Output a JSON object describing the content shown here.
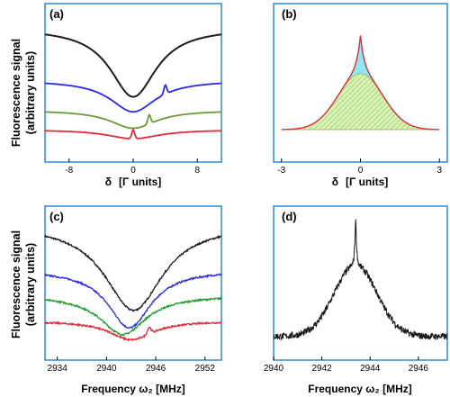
{
  "ylabel_line1": "Fluorescence signal",
  "ylabel_line2": "(arbitrary units)",
  "colors": {
    "frame": "#2f8bd6",
    "black": "#1a1a1a",
    "blue": "#2a2ae6",
    "green": "#6a9a3a",
    "green_c": "#1f9a2a",
    "red": "#e12a3a",
    "fill_cyan": "#8fe8f2",
    "fill_green": "#c8ec9a",
    "hatch": "#9fd070"
  },
  "chart_data": [
    {
      "panel": "(a)",
      "type": "line",
      "xlabel_sym": "δ",
      "xlabel_unit": "[Γ units]",
      "xlim": [
        -11,
        11
      ],
      "ylim": [
        0,
        1
      ],
      "xticks": [
        -8,
        0,
        8
      ],
      "series": [
        {
          "color": "black",
          "center": 0,
          "offset": 0.86,
          "depth": 0.46,
          "width": 3.5,
          "feature": null
        },
        {
          "color": "blue",
          "center": 0,
          "offset": 0.51,
          "depth": 0.21,
          "width": 3.5,
          "feature": {
            "x": 4,
            "height": 0.06
          }
        },
        {
          "color": "green",
          "center": 0,
          "offset": 0.31,
          "depth": 0.12,
          "width": 3.5,
          "feature": {
            "x": 2,
            "height": 0.06
          }
        },
        {
          "color": "red",
          "center": 0,
          "offset": 0.18,
          "depth": 0.06,
          "width": 4,
          "feature": {
            "x": 0,
            "height": 0.06
          }
        }
      ]
    },
    {
      "panel": "(b)",
      "type": "area",
      "xlabel_sym": "δ",
      "xlabel_unit": "[Γ units]",
      "xlim": [
        -3.3,
        3.3
      ],
      "ylim": [
        0,
        1
      ],
      "xticks": [
        -3,
        0,
        3
      ],
      "series": [
        {
          "role": "broad pedestal",
          "height": 0.52,
          "width": 1.2
        },
        {
          "role": "narrow peak",
          "height": 0.35,
          "width": 0.15
        }
      ]
    },
    {
      "panel": "(c)",
      "type": "line",
      "xlabel": "Frequency ω₂ [MHz]",
      "xlim": [
        2932.5,
        2954
      ],
      "ylim": [
        0,
        1
      ],
      "xticks": [
        2934,
        2940,
        2946,
        2952
      ],
      "series": [
        {
          "color": "black",
          "center": 2943.3,
          "offset": 0.89,
          "depth": 0.64,
          "width": 4.3,
          "feature": null
        },
        {
          "color": "blue",
          "center": 2942.8,
          "offset": 0.55,
          "depth": 0.43,
          "width": 3.2,
          "feature": null
        },
        {
          "color": "green_c",
          "center": 2942,
          "offset": 0.36,
          "depth": 0.29,
          "width": 3.4,
          "feature": null
        },
        {
          "color": "red",
          "center": 2943,
          "offset": 0.17,
          "depth": 0.14,
          "width": 3.2,
          "feature": {
            "x": 2945.2,
            "height": 0.05
          }
        }
      ]
    },
    {
      "panel": "(d)",
      "type": "line",
      "xlabel": "Frequency ω₂ [MHz]",
      "xlim": [
        2940,
        2947.2
      ],
      "ylim": [
        0,
        1
      ],
      "xticks": [
        2940,
        2942,
        2944,
        2946
      ],
      "series": [
        {
          "color": "black",
          "center": 2943.4,
          "base": 0.08,
          "pedestal": 0.52,
          "pedestal_width": 1.25,
          "peak": 0.38,
          "peak_width": 0.04
        }
      ]
    }
  ]
}
